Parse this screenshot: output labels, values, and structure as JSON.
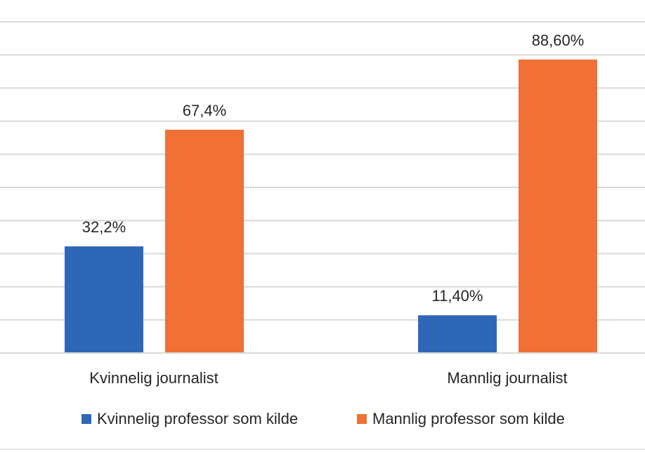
{
  "chart_data": {
    "type": "bar",
    "categories": [
      "Kvinnelig journalist",
      "Mannlig journalist"
    ],
    "series": [
      {
        "name": "Kvinnelig professor som kilde",
        "color": "#2f67b8",
        "values": [
          32.2,
          11.4
        ],
        "labels": [
          "32,2%",
          "11,40%"
        ]
      },
      {
        "name": "Mannlig professor som kilde",
        "color": "#f07035",
        "values": [
          67.4,
          88.6
        ],
        "labels": [
          "67,4%",
          "88,60%"
        ]
      }
    ],
    "ylim": [
      0,
      100
    ],
    "grid": true,
    "legend": "bottom"
  }
}
